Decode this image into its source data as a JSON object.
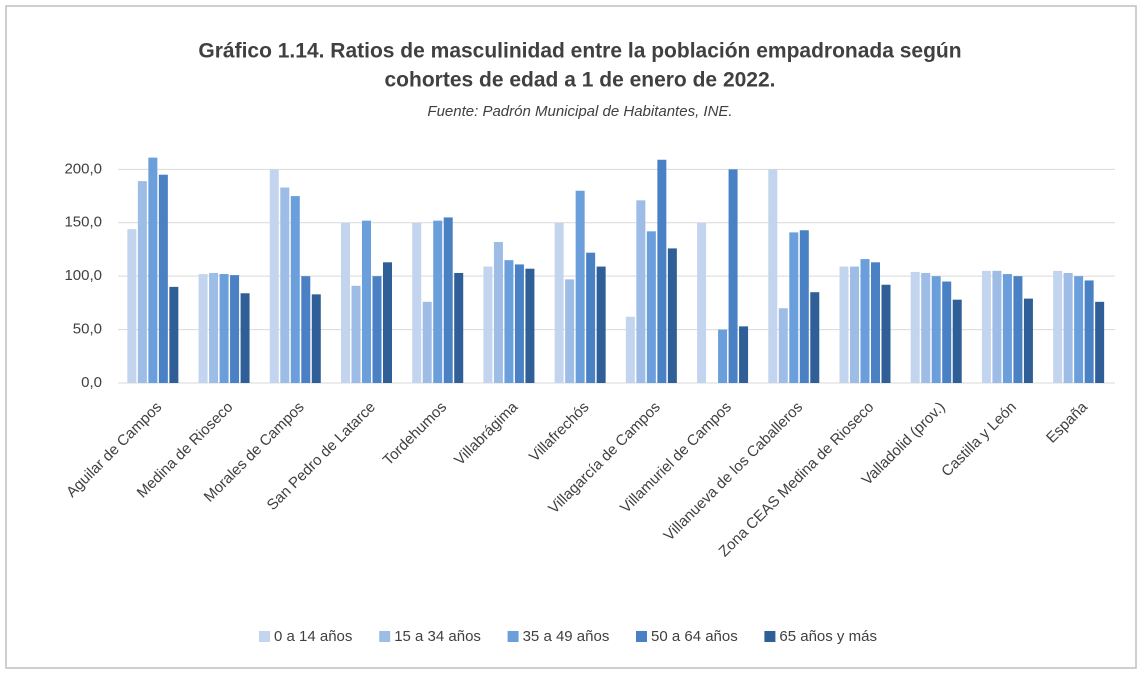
{
  "chart_data": {
    "type": "bar",
    "title": [
      "Gráfico 1.14. Ratios de masculinidad entre la población empadronada según",
      "cohortes de edad a 1 de enero de 2022."
    ],
    "subtitle": "Fuente: Padrón Municipal de Habitantes, INE.",
    "categories": [
      "Aguilar de Campos",
      "Medina de Rioseco",
      "Morales de Campos",
      "San Pedro de Latarce",
      "Tordehumos",
      "Villabrágima",
      "Villafrechós",
      "Villagarcía de Campos",
      "Villamuriel de Campos",
      "Villanueva de los Caballeros",
      "Zona CEAS Medina de Rioseco",
      "Valladolid (prov.)",
      "Castilla y León",
      "España"
    ],
    "series": [
      {
        "name": "0 a 14 años",
        "color": "#c3d5ee",
        "values": [
          144,
          102,
          200,
          150,
          150,
          109,
          150,
          62,
          150,
          200,
          109,
          104,
          105,
          105
        ]
      },
      {
        "name": "15 a 34 años",
        "color": "#9dbde6",
        "values": [
          189,
          103,
          183,
          91,
          76,
          132,
          97,
          171,
          0,
          70,
          109,
          103,
          105,
          103
        ]
      },
      {
        "name": "35 a 49 años",
        "color": "#6a9fdc",
        "values": [
          211,
          102,
          175,
          152,
          152,
          115,
          180,
          142,
          50,
          141,
          116,
          100,
          102,
          100
        ]
      },
      {
        "name": "50 a 64 años",
        "color": "#4a80c4",
        "values": [
          195,
          101,
          100,
          100,
          155,
          111,
          122,
          209,
          200,
          143,
          113,
          95,
          100,
          96
        ]
      },
      {
        "name": "65 años y más",
        "color": "#2f5f96",
        "values": [
          90,
          84,
          83,
          113,
          103,
          107,
          109,
          126,
          53,
          85,
          92,
          78,
          79,
          76
        ]
      }
    ],
    "ylim": [
      0,
      220
    ],
    "yticks": [
      {
        "value": 0,
        "label": "0,0"
      },
      {
        "value": 50,
        "label": "50,0"
      },
      {
        "value": 100,
        "label": "100,0"
      },
      {
        "value": 150,
        "label": "150,0"
      },
      {
        "value": 200,
        "label": "200,0"
      }
    ],
    "grid": true,
    "legend": "bottom"
  }
}
